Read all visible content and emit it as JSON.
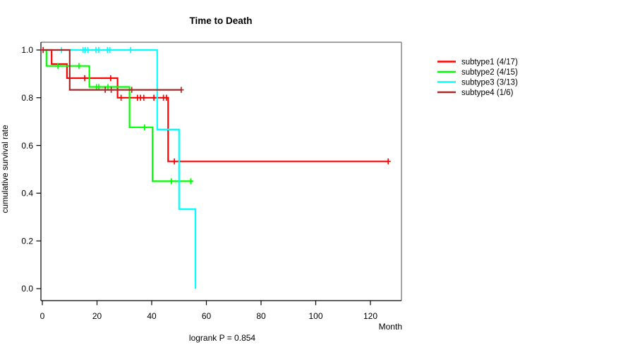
{
  "chart_data": {
    "type": "line",
    "subtype": "kaplan-meier-step-survival",
    "title": "Time to Death",
    "xlabel": "Month",
    "ylabel": "cumulative survival rate",
    "footnote": "logrank P = 0.854",
    "xlim": [
      0,
      131
    ],
    "ylim": [
      0.0,
      1.0
    ],
    "x_ticks": [
      0,
      20,
      40,
      60,
      80,
      100,
      120
    ],
    "y_ticks": [
      0.0,
      0.2,
      0.4,
      0.6,
      0.8,
      1.0
    ],
    "grid": false,
    "legend_position": "right-outside",
    "censor_marker": "plus",
    "series": [
      {
        "id": "subtype1",
        "name": "subtype1 (4/17)",
        "color": "#FF0000",
        "events": "4/17",
        "steps": [
          [
            0,
            1.0
          ],
          [
            3.4,
            1.0
          ],
          [
            3.4,
            0.941
          ],
          [
            9,
            0.941
          ],
          [
            9,
            0.882
          ],
          [
            27.5,
            0.882
          ],
          [
            27.5,
            0.8
          ],
          [
            46,
            0.8
          ],
          [
            46,
            0.533
          ],
          [
            126.5,
            0.533
          ]
        ],
        "censor_marks": [
          [
            0.3,
            1.0
          ],
          [
            15.5,
            0.882
          ],
          [
            25,
            0.882
          ],
          [
            28.8,
            0.8
          ],
          [
            34.8,
            0.8
          ],
          [
            35.9,
            0.8
          ],
          [
            37.1,
            0.8
          ],
          [
            40.8,
            0.8
          ],
          [
            44.3,
            0.8
          ],
          [
            45.4,
            0.8
          ],
          [
            48.3,
            0.533
          ],
          [
            126.5,
            0.533
          ]
        ]
      },
      {
        "id": "subtype2",
        "name": "subtype2 (4/15)",
        "color": "#00FF00",
        "events": "4/15",
        "steps": [
          [
            0,
            1.0
          ],
          [
            1.5,
            1.0
          ],
          [
            1.5,
            0.933
          ],
          [
            17.2,
            0.933
          ],
          [
            17.2,
            0.845
          ],
          [
            31.9,
            0.845
          ],
          [
            31.9,
            0.676
          ],
          [
            40.3,
            0.676
          ],
          [
            40.3,
            0.45
          ],
          [
            55,
            0.45
          ]
        ],
        "censor_marks": [
          [
            5.7,
            0.933
          ],
          [
            13.4,
            0.933
          ],
          [
            19.8,
            0.845
          ],
          [
            20.6,
            0.845
          ],
          [
            24,
            0.845
          ],
          [
            37.4,
            0.676
          ],
          [
            47.2,
            0.45
          ],
          [
            54.3,
            0.45
          ]
        ]
      },
      {
        "id": "subtype3",
        "name": "subtype3 (3/13)",
        "color": "#00FFFF",
        "events": "3/13",
        "steps": [
          [
            0,
            1.0
          ],
          [
            42,
            1.0
          ],
          [
            42,
            0.667
          ],
          [
            50,
            0.667
          ],
          [
            50,
            0.333
          ],
          [
            56,
            0.333
          ],
          [
            56,
            0.0
          ]
        ],
        "censor_marks": [
          [
            7,
            1.0
          ],
          [
            14.9,
            1.0
          ],
          [
            15.7,
            1.0
          ],
          [
            16.6,
            1.0
          ],
          [
            19.6,
            1.0
          ],
          [
            20.6,
            1.0
          ],
          [
            23.8,
            1.0
          ],
          [
            24.7,
            1.0
          ],
          [
            32.3,
            1.0
          ]
        ]
      },
      {
        "id": "subtype4",
        "name": "subtype4 (1/6)",
        "color": "#A52A2A",
        "events": "1/6",
        "steps": [
          [
            0,
            1.0
          ],
          [
            10,
            1.0
          ],
          [
            10,
            0.833
          ],
          [
            50.8,
            0.833
          ]
        ],
        "censor_marks": [
          [
            23,
            0.833
          ],
          [
            25.2,
            0.833
          ],
          [
            32.7,
            0.833
          ],
          [
            50.8,
            0.833
          ]
        ]
      }
    ]
  }
}
